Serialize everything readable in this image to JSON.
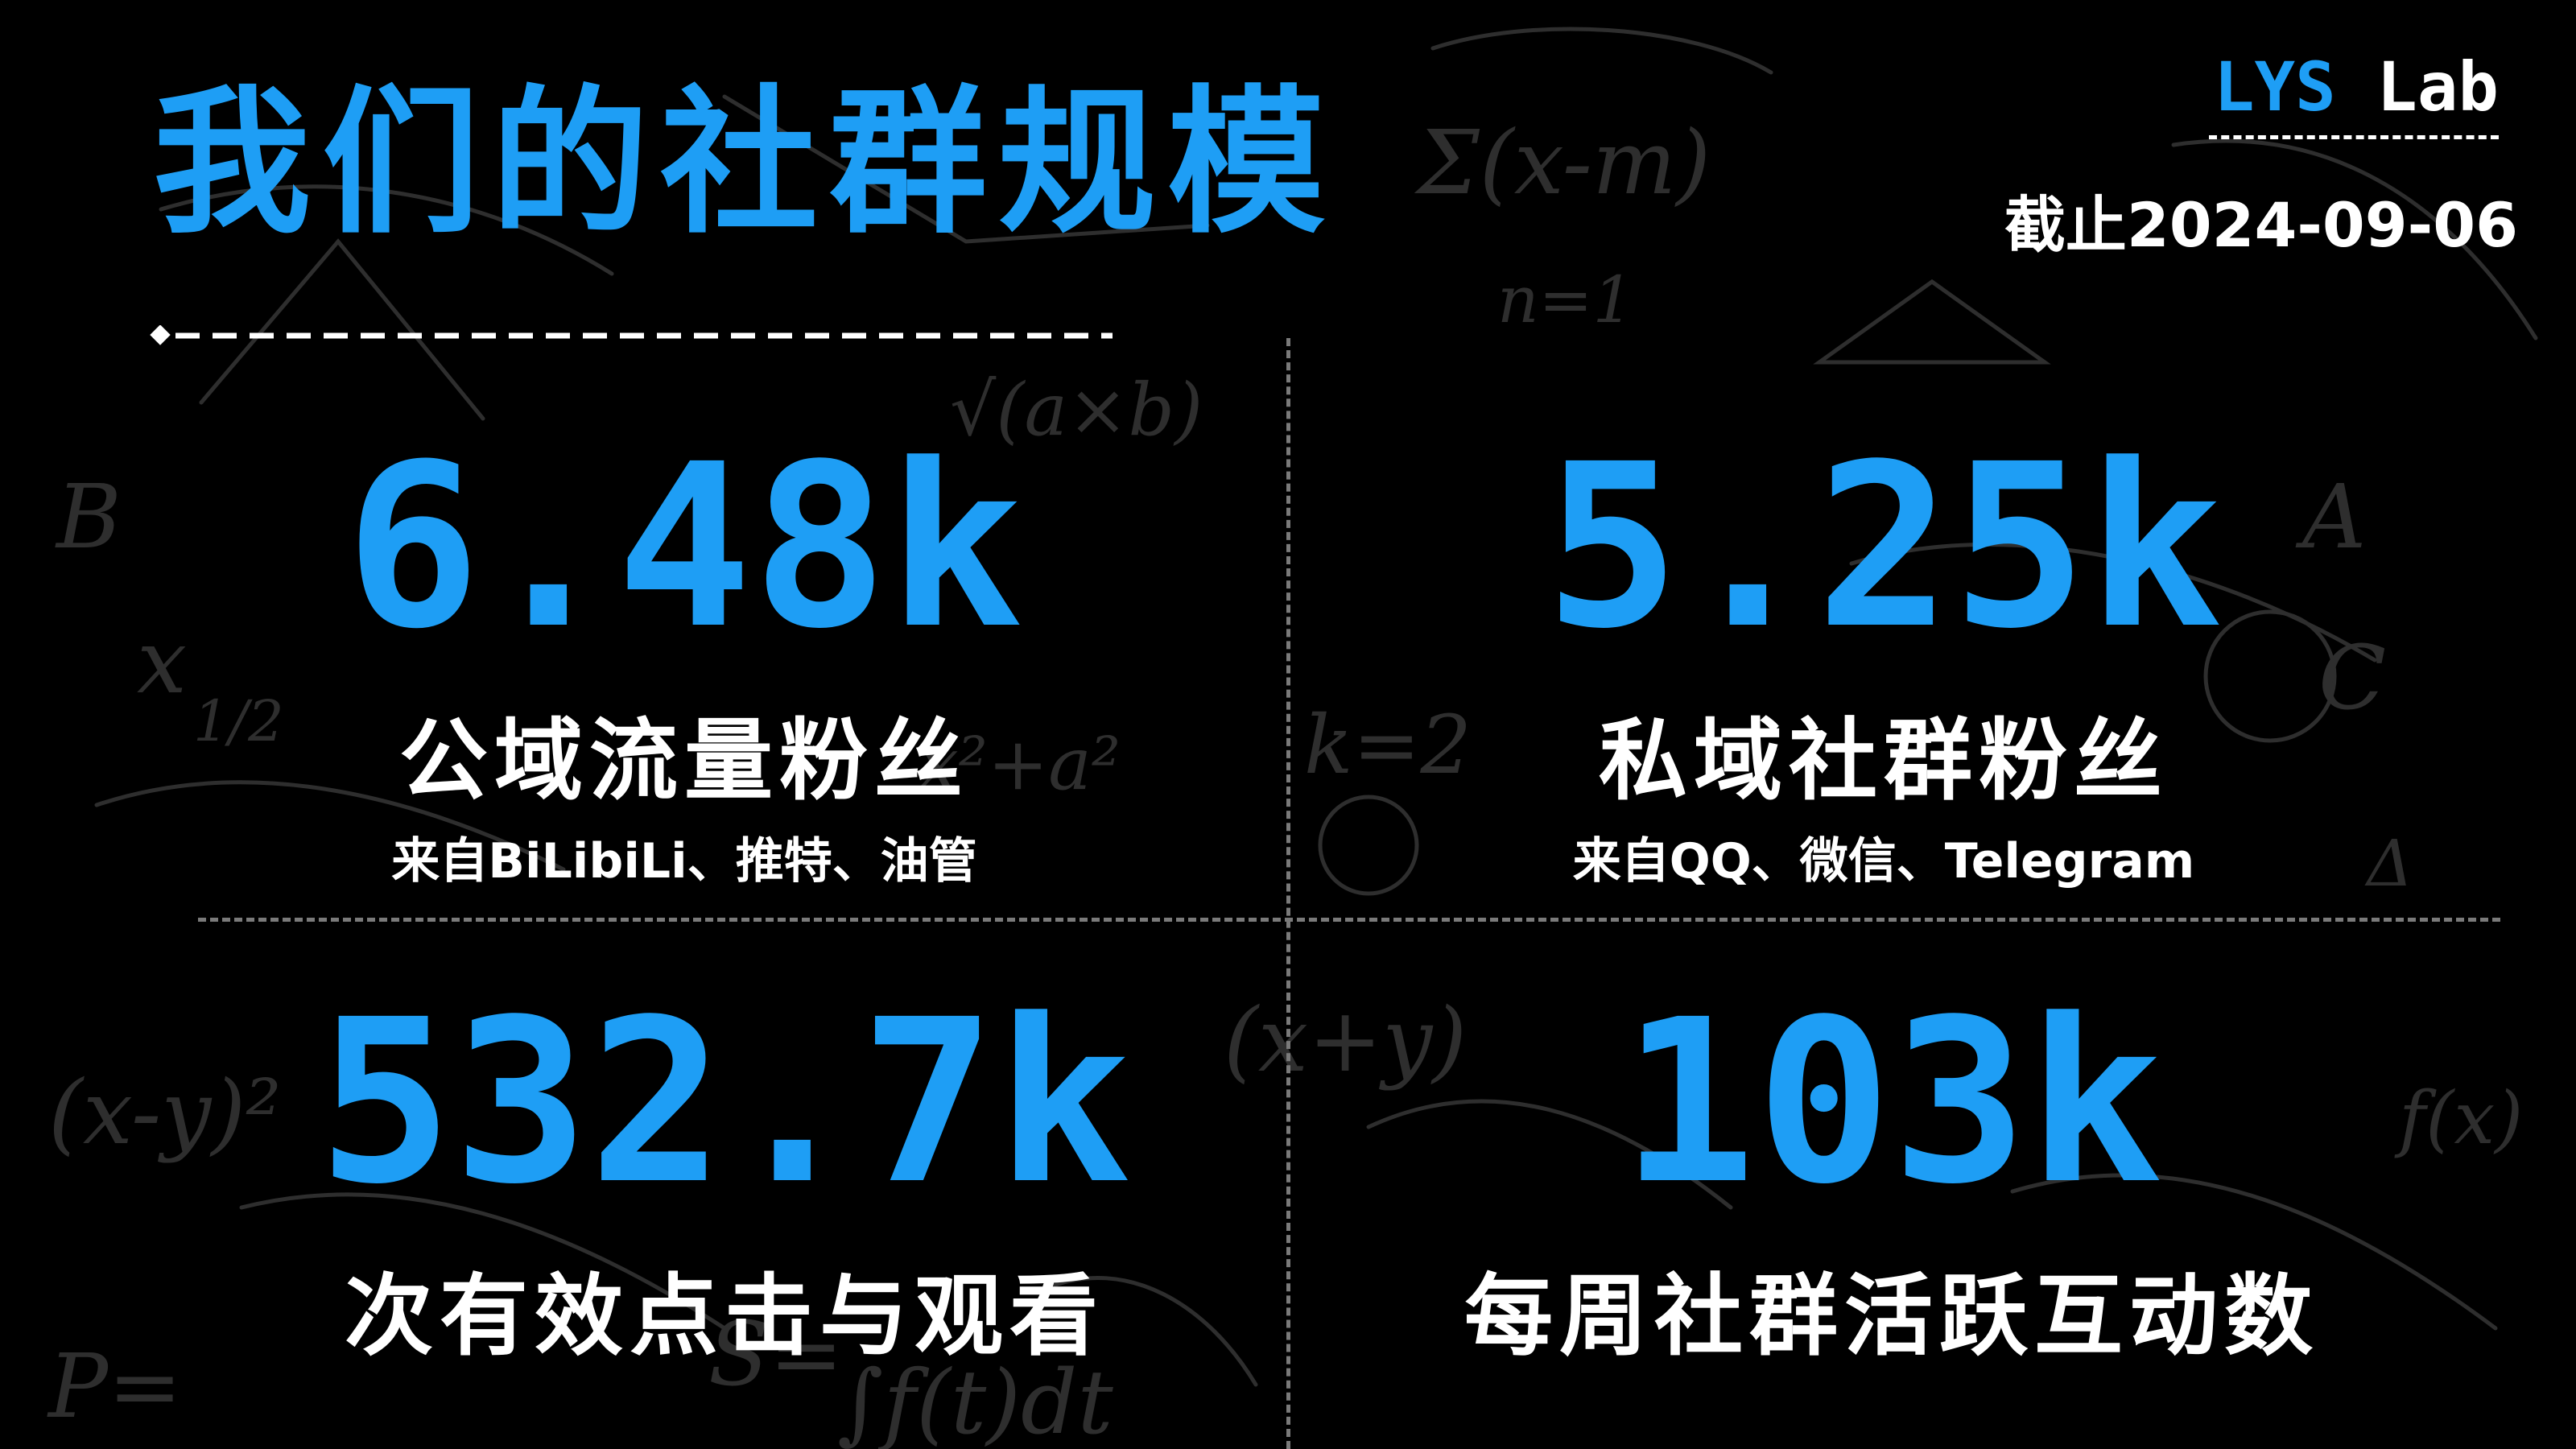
{
  "title": "我们的社群规模",
  "brand": {
    "part1": "LYS",
    "part2": " Lab"
  },
  "date": "截止2024-09-06",
  "stats": [
    {
      "value": "6.48k",
      "label": "公域流量粉丝",
      "sub": "来自BiLibiLi、推特、油管"
    },
    {
      "value": "5.25k",
      "label": "私域社群粉丝",
      "sub": "来自QQ、微信、Telegram"
    },
    {
      "value": "532.7k",
      "label": "次有效点击与观看"
    },
    {
      "value": "103k",
      "label": "每周社群活跃互动数"
    }
  ],
  "colors": {
    "accent": "#1e9ef5",
    "background": "#000000",
    "text": "#ffffff"
  },
  "background_art": [
    "Σ(x-m)",
    "n=1",
    "√(a×b)",
    "B",
    "x",
    "1/2",
    "x²+a²",
    "k=2",
    "(x-y)²",
    "(x+y)",
    "f(x)",
    "P=",
    "S=",
    "∫f(t)dt",
    "A",
    "C",
    "Δ"
  ]
}
